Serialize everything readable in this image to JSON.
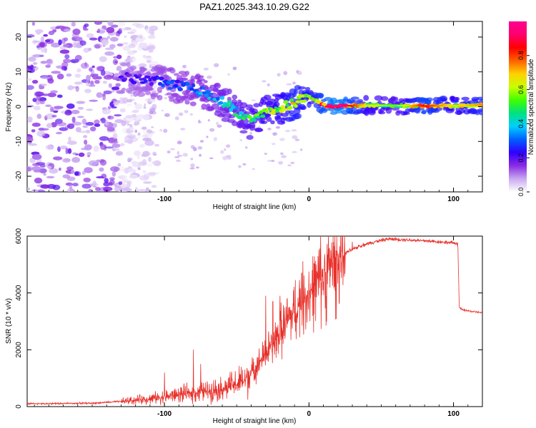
{
  "title": "PAZ1.2025.343.10.29.G22",
  "chart_data": [
    {
      "type": "heatmap",
      "name": "spectrogram",
      "xlabel": "Height of straight line (km)",
      "ylabel": "Frequency (Hz)",
      "xlim": [
        -195,
        120
      ],
      "ylim": [
        -24.5,
        24.5
      ],
      "xticks": [
        -100,
        0,
        100
      ],
      "xtick_labels": [
        "-100",
        "0",
        "100"
      ],
      "yticks": [
        -20,
        -10,
        0,
        10,
        20
      ],
      "ytick_labels": [
        "-20",
        "-10",
        "0",
        "10",
        "20"
      ],
      "ridge": {
        "x": [
          -130,
          -110,
          -90,
          -75,
          -60,
          -48,
          -40,
          -30,
          -20,
          -10,
          -2,
          5,
          12,
          20,
          40,
          60,
          80,
          100,
          120
        ],
        "freq": [
          8.5,
          7.5,
          6,
          4.5,
          1.5,
          -2,
          -4.5,
          -1.5,
          -0.5,
          1,
          3,
          2,
          0,
          0.2,
          0.4,
          0.3,
          0.2,
          0.3,
          0.5
        ],
        "amplitude": [
          0.2,
          0.25,
          0.3,
          0.35,
          0.4,
          0.45,
          0.5,
          0.55,
          0.6,
          0.7,
          0.65,
          0.7,
          0.85,
          0.95,
          0.6,
          0.5,
          0.8,
          0.6,
          0.7
        ]
      },
      "noise_region_x": [
        -195,
        -130
      ],
      "colorbar": {
        "label": "Normalized spectral amplitude",
        "range": [
          0,
          1
        ],
        "ticks": [
          0.0,
          0.2,
          0.4,
          0.6,
          0.8
        ],
        "tick_labels": [
          "0.0",
          "0.2",
          "0.4",
          "0.6",
          "0.8"
        ],
        "colormap": [
          "#ffffff",
          "#c8a8f0",
          "#8a2be2",
          "#3000ff",
          "#0060ff",
          "#00d0ff",
          "#00e080",
          "#40ff00",
          "#c8ff00",
          "#ffd000",
          "#ff6000",
          "#ff0000",
          "#ff0070",
          "#ff0090"
        ]
      }
    },
    {
      "type": "line",
      "name": "snr",
      "xlabel": "Height of straight line (km)",
      "ylabel": "SNR (10 * v/v)",
      "xlim": [
        -195,
        120
      ],
      "ylim": [
        0,
        6000
      ],
      "xticks": [
        -100,
        0,
        100
      ],
      "xtick_labels": [
        "-100",
        "0",
        "100"
      ],
      "yticks": [
        0,
        2000,
        4000,
        6000
      ],
      "ytick_labels": [
        "0",
        "2000",
        "4000",
        "6000"
      ],
      "color": "#e8302a",
      "trend": {
        "x": [
          -195,
          -150,
          -130,
          -110,
          -90,
          -70,
          -55,
          -45,
          -35,
          -25,
          -15,
          -5,
          5,
          15,
          25,
          35,
          45,
          55,
          65,
          75,
          85,
          95,
          103,
          104,
          106,
          120
        ],
        "y": [
          100,
          120,
          180,
          280,
          420,
          550,
          700,
          900,
          1500,
          2200,
          3000,
          3700,
          4300,
          4900,
          5400,
          5650,
          5800,
          5900,
          5880,
          5850,
          5820,
          5780,
          5750,
          3500,
          3400,
          3300
        ]
      },
      "spikes": [
        {
          "x": -80,
          "y": 2000
        },
        {
          "x": -75,
          "y": 1500
        },
        {
          "x": -100,
          "y": 1200
        },
        {
          "x": -30,
          "y": 3900
        },
        {
          "x": -25,
          "y": 3700
        },
        {
          "x": -20,
          "y": 3900
        },
        {
          "x": -5,
          "y": 4700
        },
        {
          "x": 5,
          "y": 5000
        },
        {
          "x": 15,
          "y": 5500
        },
        {
          "x": 30,
          "y": 5800
        }
      ]
    }
  ]
}
